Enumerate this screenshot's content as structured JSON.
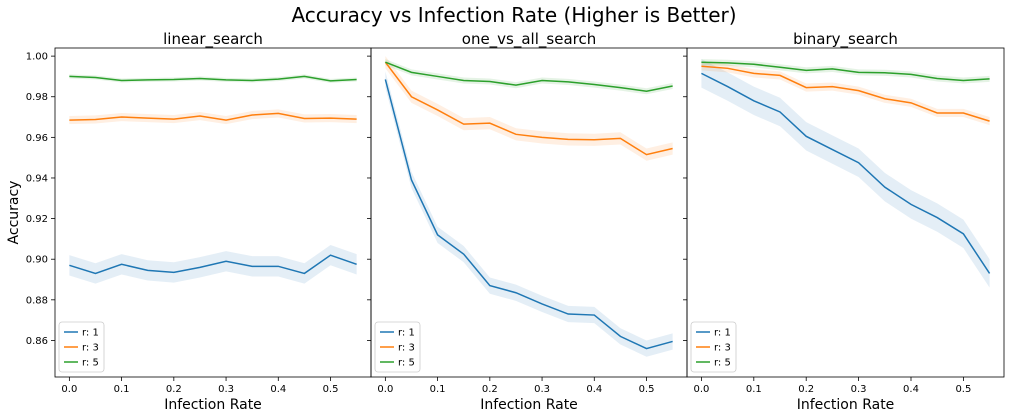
{
  "figure": {
    "suptitle": "Accuracy vs Infection Rate (Higher is Better)"
  },
  "chart_data": [
    {
      "type": "line",
      "title": "linear_search",
      "xlabel": "Infection Rate",
      "ylabel": "Accuracy",
      "xlim": [
        -0.0275,
        0.5775
      ],
      "ylim": [
        0.842,
        1.004
      ],
      "xticks": [
        "0.0",
        "0.1",
        "0.2",
        "0.3",
        "0.4",
        "0.5"
      ],
      "yticks": [
        "0.86",
        "0.88",
        "0.90",
        "0.92",
        "0.94",
        "0.96",
        "0.98",
        "1.00"
      ],
      "legend_position": "lower-left",
      "x": [
        0,
        0.05,
        0.1,
        0.15,
        0.2,
        0.25,
        0.3,
        0.35,
        0.4,
        0.45,
        0.5,
        0.55
      ],
      "series": [
        {
          "name": "r: 1",
          "color": "#1f77b4",
          "values": [
            0.897,
            0.893,
            0.8975,
            0.8945,
            0.8935,
            0.896,
            0.899,
            0.8965,
            0.8965,
            0.893,
            0.902,
            0.8975
          ],
          "band": 0.005
        },
        {
          "name": "r: 3",
          "color": "#ff7f0e",
          "values": [
            0.9685,
            0.9688,
            0.97,
            0.9695,
            0.969,
            0.9705,
            0.9685,
            0.971,
            0.9718,
            0.9693,
            0.9695,
            0.969
          ],
          "band": 0.002
        },
        {
          "name": "r: 5",
          "color": "#2ca02c",
          "values": [
            0.99,
            0.9895,
            0.988,
            0.9883,
            0.9885,
            0.989,
            0.9883,
            0.988,
            0.9887,
            0.99,
            0.9878,
            0.9885
          ],
          "band": 0.001
        }
      ]
    },
    {
      "type": "line",
      "title": "one_vs_all_search",
      "xlabel": "Infection Rate",
      "ylabel": "",
      "xlim": [
        -0.0275,
        0.5775
      ],
      "ylim": [
        0.842,
        1.004
      ],
      "xticks": [
        "0.0",
        "0.1",
        "0.2",
        "0.3",
        "0.4",
        "0.5"
      ],
      "yticks": [
        "0.86",
        "0.88",
        "0.90",
        "0.92",
        "0.94",
        "0.96",
        "0.98",
        "1.00"
      ],
      "legend_position": "lower-left",
      "x": [
        0,
        0.05,
        0.1,
        0.15,
        0.2,
        0.25,
        0.3,
        0.35,
        0.4,
        0.45,
        0.5,
        0.55
      ],
      "series": [
        {
          "name": "r: 1",
          "color": "#1f77b4",
          "values": [
            0.9885,
            0.939,
            0.912,
            0.9025,
            0.887,
            0.8835,
            0.878,
            0.873,
            0.8725,
            0.862,
            0.856,
            0.8595
          ],
          "band": 0.004
        },
        {
          "name": "r: 3",
          "color": "#ff7f0e",
          "values": [
            0.997,
            0.98,
            0.9735,
            0.9665,
            0.967,
            0.9615,
            0.96,
            0.959,
            0.9588,
            0.9595,
            0.9515,
            0.9545
          ],
          "band": 0.003
        },
        {
          "name": "r: 5",
          "color": "#2ca02c",
          "values": [
            0.997,
            0.992,
            0.99,
            0.988,
            0.9875,
            0.9857,
            0.988,
            0.9873,
            0.986,
            0.9845,
            0.9827,
            0.9853
          ],
          "band": 0.0015
        }
      ]
    },
    {
      "type": "line",
      "title": "binary_search",
      "xlabel": "Infection Rate",
      "ylabel": "",
      "xlim": [
        -0.0275,
        0.5775
      ],
      "ylim": [
        0.842,
        1.004
      ],
      "xticks": [
        "0.0",
        "0.1",
        "0.2",
        "0.3",
        "0.4",
        "0.5"
      ],
      "yticks": [
        "0.86",
        "0.88",
        "0.90",
        "0.92",
        "0.94",
        "0.96",
        "0.98",
        "1.00"
      ],
      "legend_position": "lower-left",
      "x": [
        0,
        0.05,
        0.1,
        0.15,
        0.2,
        0.25,
        0.3,
        0.35,
        0.4,
        0.45,
        0.5,
        0.55
      ],
      "series": [
        {
          "name": "r: 1",
          "color": "#1f77b4",
          "values": [
            0.9915,
            0.985,
            0.978,
            0.9725,
            0.9605,
            0.954,
            0.9475,
            0.9355,
            0.927,
            0.9205,
            0.9125,
            0.893
          ],
          "band": 0.007
        },
        {
          "name": "r: 3",
          "color": "#ff7f0e",
          "values": [
            0.995,
            0.994,
            0.9915,
            0.9905,
            0.9845,
            0.985,
            0.983,
            0.979,
            0.977,
            0.972,
            0.972,
            0.968
          ],
          "band": 0.002
        },
        {
          "name": "r: 5",
          "color": "#2ca02c",
          "values": [
            0.997,
            0.9967,
            0.996,
            0.9945,
            0.993,
            0.9937,
            0.992,
            0.9918,
            0.991,
            0.989,
            0.988,
            0.9888
          ],
          "band": 0.0015
        }
      ]
    }
  ]
}
